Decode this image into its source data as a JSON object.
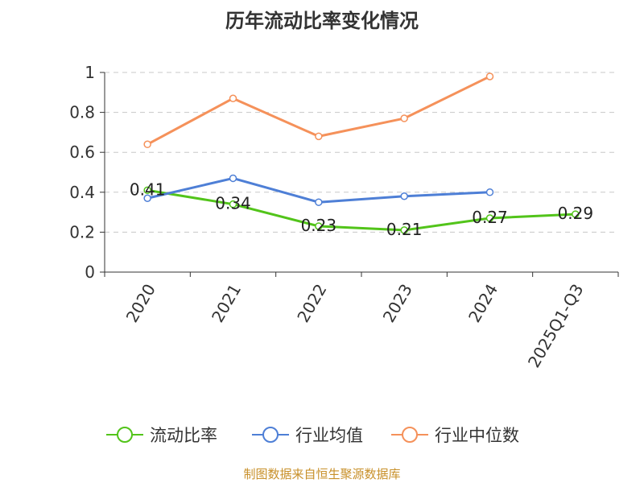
{
  "chart_data": {
    "type": "line",
    "title": "历年流动比率变化情况",
    "categories": [
      "2020",
      "2021",
      "2022",
      "2023",
      "2024",
      "2025Q1-Q3"
    ],
    "ylim": [
      0,
      1
    ],
    "yticks": [
      "0",
      "0.2",
      "0.4",
      "0.6",
      "0.8",
      "1"
    ],
    "grid": true,
    "legend_position": "bottom",
    "series": [
      {
        "name": "流动比率",
        "color": "#52c41a",
        "values": [
          0.41,
          0.34,
          0.23,
          0.21,
          0.27,
          0.29
        ],
        "labels": [
          "0.41",
          "0.34",
          "0.23",
          "0.21",
          "0.27",
          "0.29"
        ]
      },
      {
        "name": "行业均值",
        "color": "#4e7fd6",
        "values": [
          0.37,
          0.47,
          0.35,
          0.38,
          0.4,
          null
        ]
      },
      {
        "name": "行业中位数",
        "color": "#f5915a",
        "values": [
          0.64,
          0.87,
          0.68,
          0.77,
          0.98,
          null
        ]
      }
    ]
  },
  "footer": {
    "source": "制图数据来自恒生聚源数据库"
  }
}
